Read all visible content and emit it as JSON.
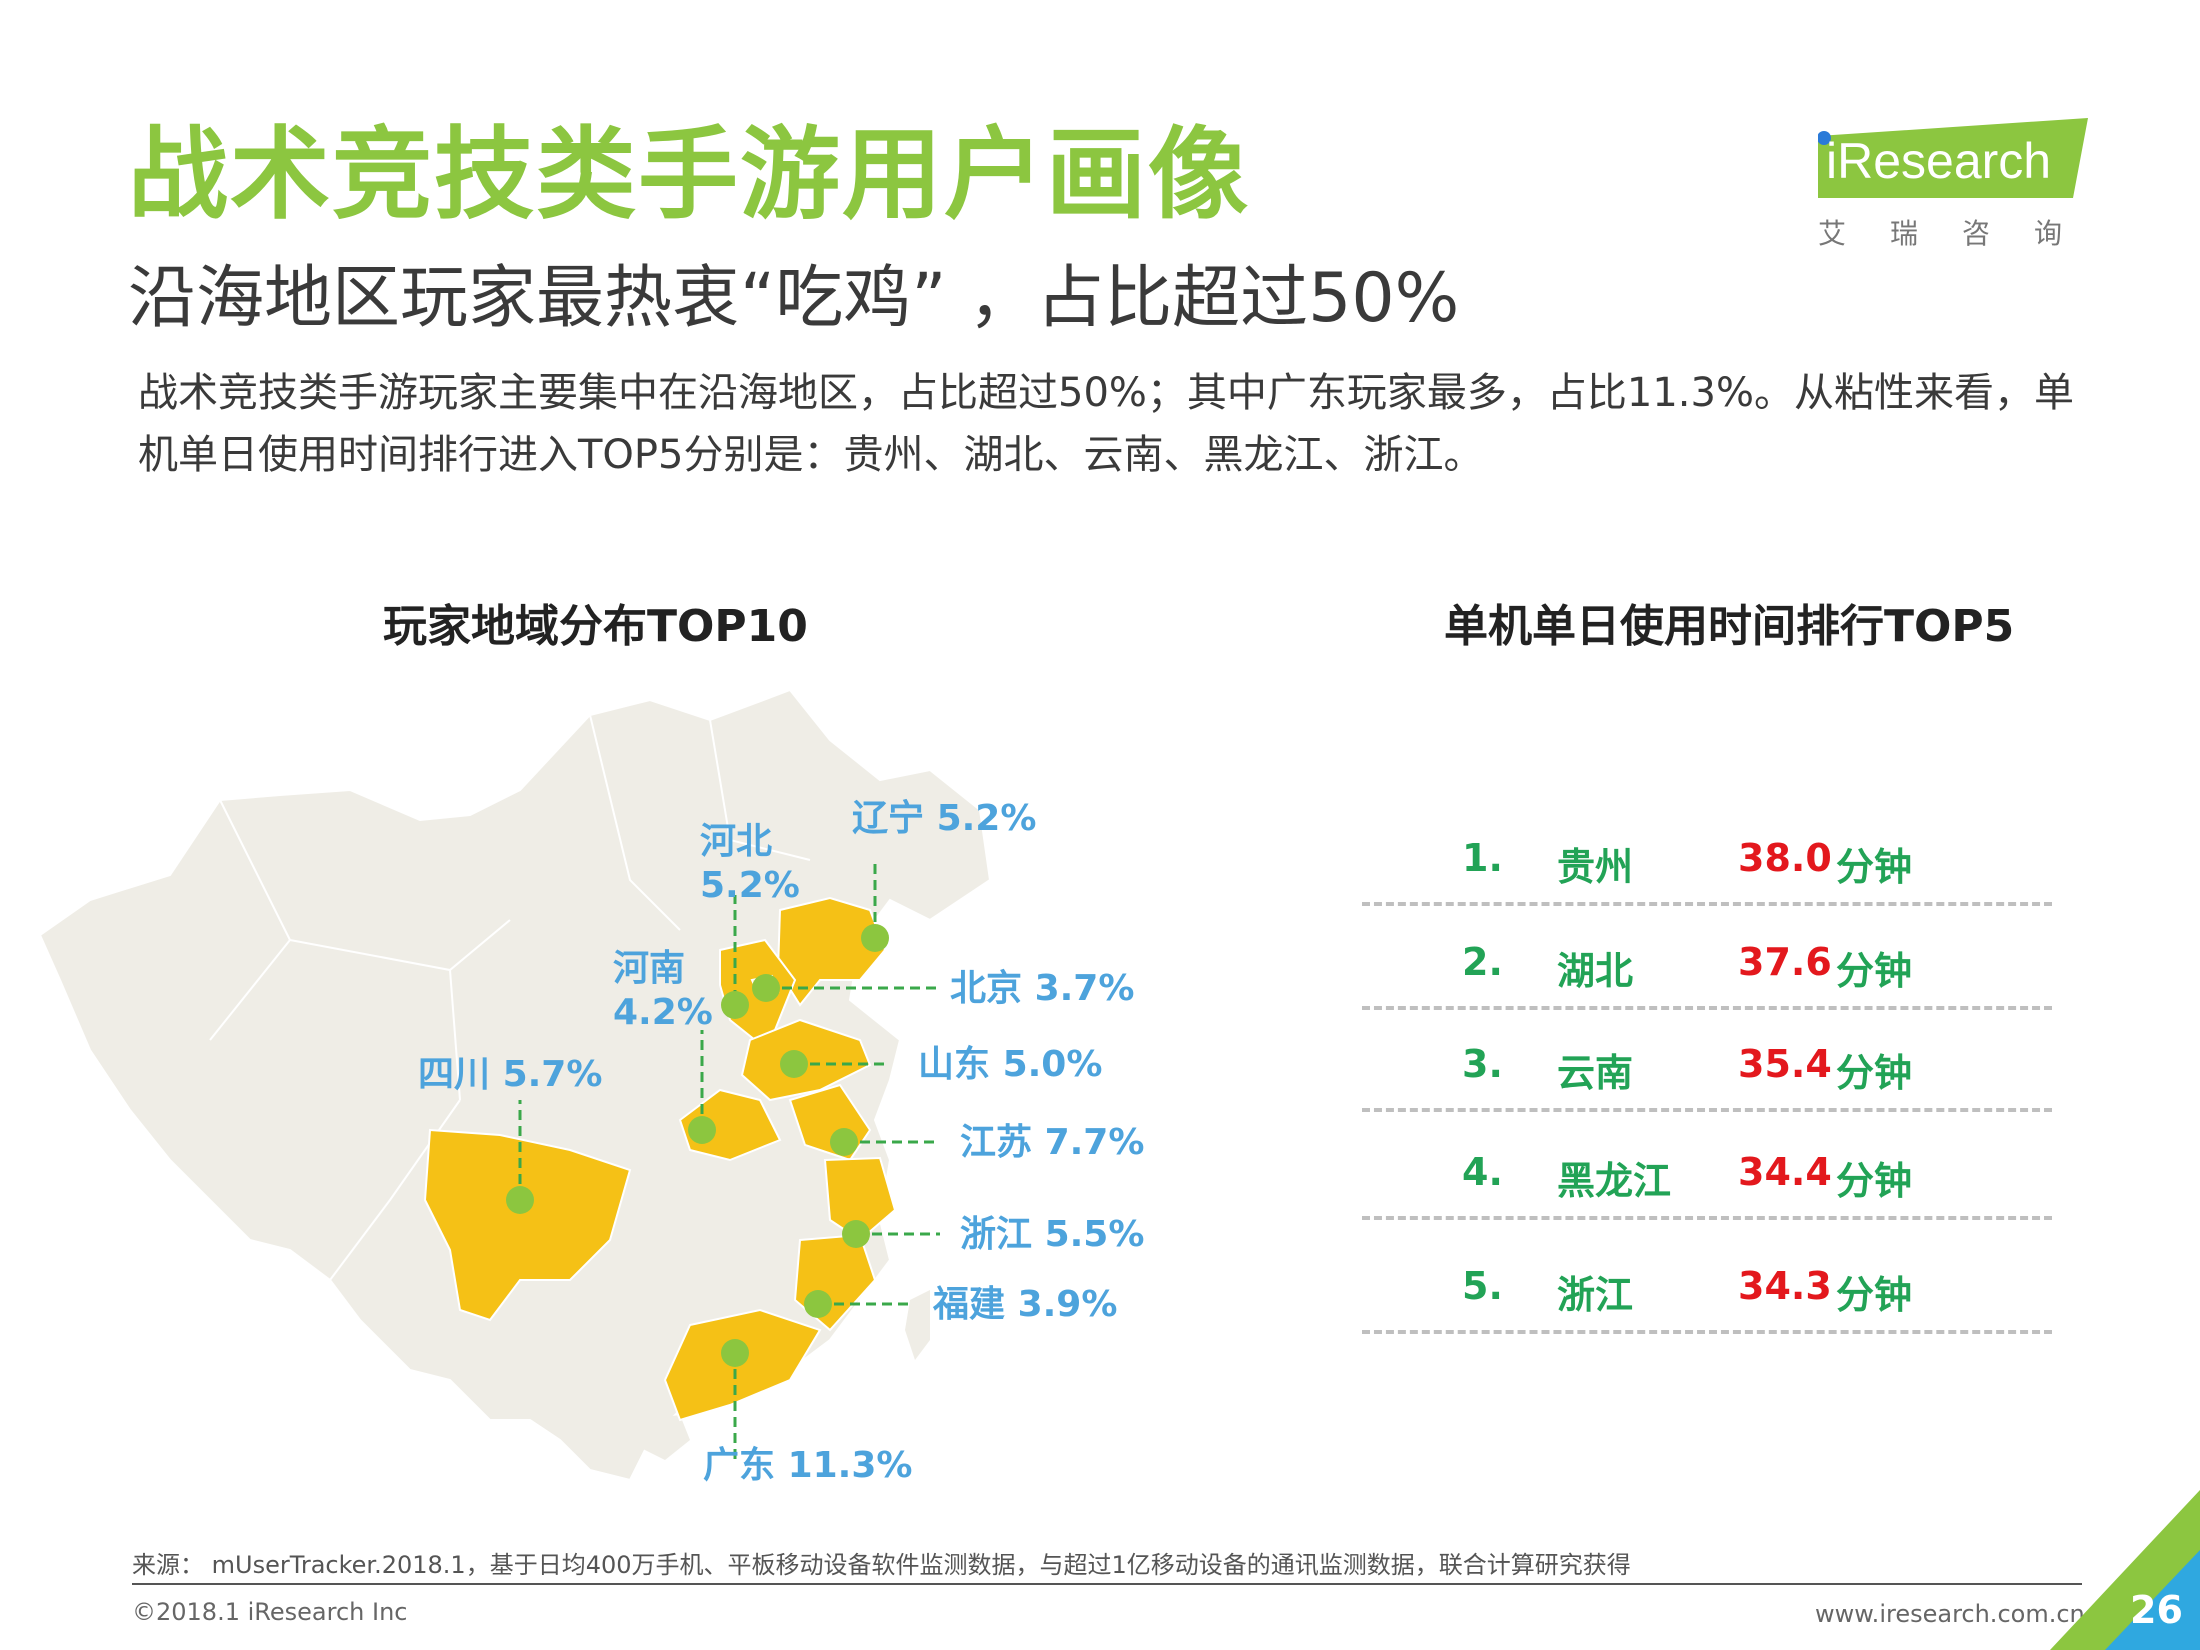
{
  "header": {
    "title": "战术竞技类手游用户画像",
    "subtitle": "沿海地区玩家最热衷“吃鸡”   ，占比超过50%",
    "description": "战术竞技类手游玩家主要集中在沿海地区，占比超过50%；其中广东玩家最多，占比11.3%。从粘性来看，单机单日使用时间排行进入TOP5分别是：贵州、湖北、云南、黑龙江、浙江。"
  },
  "logo": {
    "brand": "iResearch",
    "cn": "艾瑞咨询"
  },
  "map_section": {
    "title": "玩家地域分布TOP10",
    "provinces": [
      {
        "name": "辽宁",
        "share": "5.2%"
      },
      {
        "name": "河北",
        "share": "5.2%"
      },
      {
        "name": "北京",
        "share": "3.7%"
      },
      {
        "name": "河南",
        "share": "4.2%"
      },
      {
        "name": "山东",
        "share": "5.0%"
      },
      {
        "name": "四川",
        "share": "5.7%"
      },
      {
        "name": "江苏",
        "share": "7.7%"
      },
      {
        "name": "浙江",
        "share": "5.5%"
      },
      {
        "name": "福建",
        "share": "3.9%"
      },
      {
        "name": "广东",
        "share": "11.3%"
      }
    ]
  },
  "rank_section": {
    "title": "单机单日使用时间排行TOP5",
    "unit": "分钟",
    "rows": [
      {
        "rank": "1.",
        "province": "贵州",
        "value": "38.0"
      },
      {
        "rank": "2.",
        "province": "湖北",
        "value": "37.6"
      },
      {
        "rank": "3.",
        "province": "云南",
        "value": "35.4"
      },
      {
        "rank": "4.",
        "province": "黑龙江",
        "value": "34.4"
      },
      {
        "rank": "5.",
        "province": "浙江",
        "value": "34.3"
      }
    ]
  },
  "footer": {
    "source": "来源： mUserTracker.2018.1，基于日均400万手机、平板移动设备软件监测数据，与超过1亿移动设备的通讯监测数据，联合计算研究获得",
    "copyright": "©2018.1 iResearch Inc",
    "url": "www.iresearch.com.cn",
    "page": "26"
  },
  "colors": {
    "title_green": "#8cc640",
    "label_blue": "#4da3dc",
    "dot_green": "#8cc63f",
    "province_fill": "#f5c116",
    "map_fill": "#efede6",
    "rank_green": "#22a356",
    "rank_red": "#e3181d"
  }
}
